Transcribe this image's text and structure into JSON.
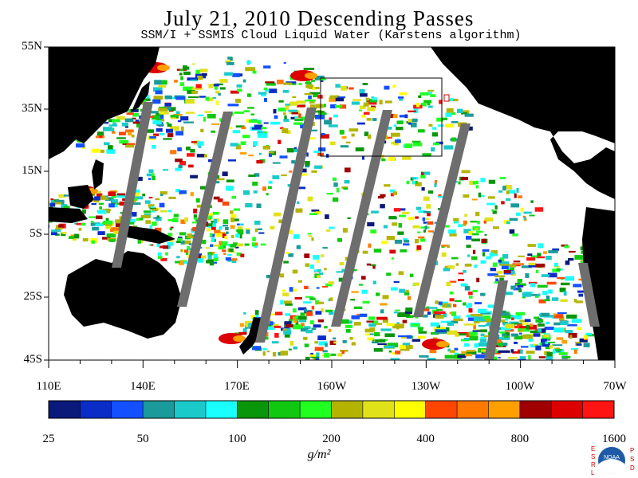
{
  "header": {
    "title": "July 21, 2010  Descending Passes",
    "subtitle": "SSM/I + SSMIS Cloud Liquid Water (Karstens algorithm)"
  },
  "axes": {
    "lat_labels": [
      "55N",
      "35N",
      "15N",
      "5S",
      "25S",
      "45S"
    ],
    "lon_labels": [
      "110E",
      "140E",
      "170E",
      "160W",
      "130W",
      "100W",
      "70W"
    ]
  },
  "colorbar": {
    "colors": [
      "#0a1a7a",
      "#0a2dc8",
      "#1450ff",
      "#1a9a9a",
      "#1acaca",
      "#19ffff",
      "#0a960a",
      "#10c810",
      "#20ff20",
      "#b4b400",
      "#e1e11a",
      "#ffff00",
      "#ff4600",
      "#ff7800",
      "#ff9f00",
      "#a00000",
      "#dc0000",
      "#ff1414"
    ],
    "tick_labels": [
      "25",
      "50",
      "100",
      "200",
      "400",
      "800",
      "1600"
    ],
    "unit": "g/m²"
  },
  "map": {
    "background": "#ffffff",
    "land_color": "#000000",
    "gap_color": "#6e6e6e",
    "box_color": "#000000"
  },
  "logo": {
    "left_letters": [
      "E",
      "S",
      "R",
      "L"
    ],
    "right_letters": [
      "P",
      "S",
      "D"
    ],
    "emblem_text": "NOAA"
  }
}
